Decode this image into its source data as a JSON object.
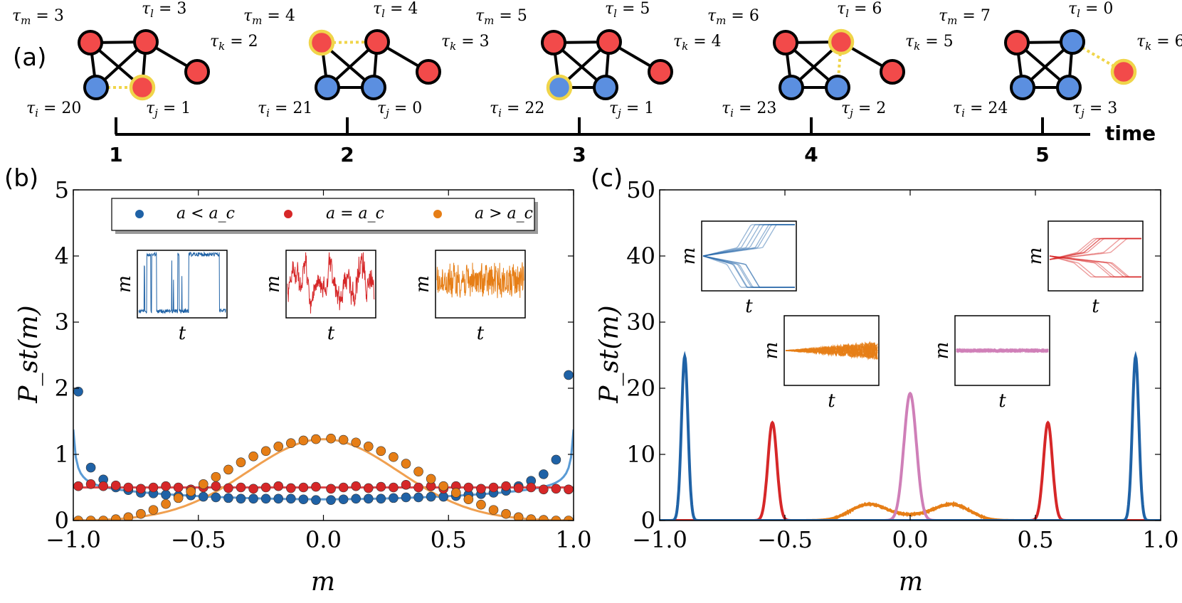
{
  "panel_labels": {
    "a": "(a)",
    "b": "(b)",
    "c": "(c)"
  },
  "colors": {
    "blue": "#1f62a6",
    "blue_node": "#5b8fe0",
    "red": "#d62728",
    "red_node": "#f24a4a",
    "orange": "#e67e16",
    "pink": "#cf7fb8",
    "highlight": "#f0d54a"
  },
  "panel_a": {
    "axis_label": "time",
    "ticks": [
      "1",
      "2",
      "3",
      "4",
      "5"
    ],
    "snapshots": [
      {
        "step": "1",
        "nodes": {
          "m": "red",
          "l": "red",
          "k": "red",
          "i": "blue",
          "j": "red"
        },
        "highlight": [
          "j"
        ],
        "link": [
          "i",
          "j"
        ],
        "labels": {
          "m": "τ_m = 3",
          "l": "τ_l = 3",
          "k": "τ_k = 2",
          "i": "τ_i = 20",
          "j": "τ_j = 1"
        }
      },
      {
        "step": "2",
        "nodes": {
          "m": "red",
          "l": "red",
          "k": "red",
          "i": "blue",
          "j": "blue"
        },
        "highlight": [
          "m"
        ],
        "link": [
          "m",
          "l"
        ],
        "labels": {
          "m": "τ_m = 4",
          "l": "τ_l = 4",
          "k": "τ_k = 3",
          "i": "τ_i = 21",
          "j": "τ_j = 0"
        }
      },
      {
        "step": "3",
        "nodes": {
          "m": "red",
          "l": "red",
          "k": "red",
          "i": "blue",
          "j": "blue"
        },
        "highlight": [
          "i"
        ],
        "link": [],
        "labels": {
          "m": "τ_m = 5",
          "l": "τ_l = 5",
          "k": "τ_k = 4",
          "i": "τ_i = 22",
          "j": "τ_j = 1"
        }
      },
      {
        "step": "4",
        "nodes": {
          "m": "red",
          "l": "red",
          "k": "red",
          "i": "blue",
          "j": "blue"
        },
        "highlight": [
          "l"
        ],
        "link": [
          "l",
          "j"
        ],
        "labels": {
          "m": "τ_m = 6",
          "l": "τ_l = 6",
          "k": "τ_k = 5",
          "i": "τ_i = 23",
          "j": "τ_j = 2"
        }
      },
      {
        "step": "5",
        "nodes": {
          "m": "red",
          "l": "blue",
          "k": "red",
          "i": "blue",
          "j": "blue"
        },
        "highlight": [
          "k"
        ],
        "link": [
          "l",
          "k"
        ],
        "labels": {
          "m": "τ_m = 7",
          "l": "τ_l = 0",
          "k": "τ_k = 6",
          "i": "τ_i = 24",
          "j": "τ_j = 3"
        }
      }
    ]
  },
  "chart_data": [
    {
      "panel": "b",
      "type": "scatter",
      "xlabel": "m",
      "ylabel": "P_st(m)",
      "xlim": [
        -1.0,
        1.0
      ],
      "ylim": [
        0,
        5
      ],
      "xticks": [
        "−1.0",
        "−0.5",
        "0.0",
        "0.5",
        "1.0"
      ],
      "yticks": [
        "0",
        "1",
        "2",
        "3",
        "4",
        "5"
      ],
      "legend": {
        "position": "top",
        "entries": [
          "a < a_c",
          "a = a_c",
          "a > a_c"
        ]
      },
      "x": [
        -0.98,
        -0.93,
        -0.88,
        -0.83,
        -0.78,
        -0.73,
        -0.68,
        -0.63,
        -0.58,
        -0.53,
        -0.48,
        -0.43,
        -0.38,
        -0.33,
        -0.28,
        -0.23,
        -0.18,
        -0.13,
        -0.08,
        -0.03,
        0.03,
        0.08,
        0.13,
        0.18,
        0.23,
        0.28,
        0.33,
        0.38,
        0.43,
        0.48,
        0.53,
        0.58,
        0.63,
        0.68,
        0.73,
        0.78,
        0.83,
        0.88,
        0.93,
        0.98
      ],
      "series": [
        {
          "name": "a < a_c",
          "color": "#1f62a6",
          "values": [
            1.95,
            0.8,
            0.62,
            0.5,
            0.46,
            0.42,
            0.41,
            0.39,
            0.37,
            0.38,
            0.36,
            0.35,
            0.34,
            0.33,
            0.33,
            0.33,
            0.33,
            0.33,
            0.32,
            0.31,
            0.31,
            0.32,
            0.33,
            0.33,
            0.33,
            0.34,
            0.35,
            0.35,
            0.36,
            0.36,
            0.37,
            0.39,
            0.4,
            0.42,
            0.45,
            0.52,
            0.6,
            0.7,
            0.92,
            2.2
          ]
        },
        {
          "name": "a = a_c",
          "color": "#d62728",
          "values": [
            0.52,
            0.55,
            0.52,
            0.53,
            0.5,
            0.48,
            0.5,
            0.52,
            0.5,
            0.47,
            0.5,
            0.52,
            0.49,
            0.5,
            0.48,
            0.5,
            0.52,
            0.49,
            0.5,
            0.51,
            0.48,
            0.5,
            0.52,
            0.49,
            0.51,
            0.5,
            0.54,
            0.5,
            0.52,
            0.48,
            0.52,
            0.5,
            0.48,
            0.5,
            0.52,
            0.49,
            0.5,
            0.47,
            0.48,
            0.47
          ]
        },
        {
          "name": "a > a_c",
          "color": "#e67e16",
          "values": [
            0.0,
            0.0,
            0.0,
            0.02,
            0.05,
            0.1,
            0.16,
            0.25,
            0.34,
            0.44,
            0.55,
            0.66,
            0.77,
            0.88,
            0.97,
            1.05,
            1.12,
            1.17,
            1.21,
            1.23,
            1.24,
            1.22,
            1.18,
            1.12,
            1.05,
            0.96,
            0.86,
            0.74,
            0.63,
            0.52,
            0.42,
            0.32,
            0.24,
            0.16,
            0.1,
            0.05,
            0.02,
            0.01,
            0.0,
            0.0
          ]
        }
      ],
      "insets": [
        {
          "name": "a < a_c",
          "xlabel": "t",
          "ylabel": "m",
          "color": "#1f62a6"
        },
        {
          "name": "a = a_c",
          "xlabel": "t",
          "ylabel": "m",
          "color": "#d62728"
        },
        {
          "name": "a > a_c",
          "xlabel": "t",
          "ylabel": "m",
          "color": "#e67e16"
        }
      ]
    },
    {
      "panel": "c",
      "type": "line",
      "xlabel": "m",
      "ylabel": "P_st(m)",
      "xlim": [
        -1.0,
        1.0
      ],
      "ylim": [
        0,
        50
      ],
      "xticks": [
        "−1.0",
        "−0.5",
        "0.0",
        "0.5",
        "1.0"
      ],
      "yticks": [
        "0",
        "10",
        "20",
        "30",
        "40",
        "50"
      ],
      "series": [
        {
          "name": "blue",
          "color": "#1f62a6",
          "peaks": [
            {
              "center": -0.9,
              "height": 24.8,
              "width": 0.013
            },
            {
              "center": 0.9,
              "height": 24.8,
              "width": 0.013
            }
          ]
        },
        {
          "name": "red",
          "color": "#d62728",
          "peaks": [
            {
              "center": -0.55,
              "height": 14.8,
              "width": 0.018
            },
            {
              "center": 0.55,
              "height": 14.8,
              "width": 0.018
            }
          ]
        },
        {
          "name": "pink",
          "color": "#cf7fb8",
          "peaks": [
            {
              "center": 0.0,
              "height": 19.2,
              "width": 0.025
            }
          ]
        },
        {
          "name": "orange",
          "color": "#e67e16",
          "peaks": [
            {
              "center": -0.17,
              "height": 2.3,
              "width": 0.07
            },
            {
              "center": 0.17,
              "height": 2.3,
              "width": 0.07
            },
            {
              "center": 0.0,
              "height": 0.7,
              "width": 0.1
            }
          ]
        }
      ],
      "insets": [
        {
          "name": "blue",
          "xlabel": "t",
          "ylabel": "m",
          "color": "#1f62a6"
        },
        {
          "name": "red",
          "xlabel": "t",
          "ylabel": "m",
          "color": "#d62728"
        },
        {
          "name": "orange",
          "xlabel": "t",
          "ylabel": "m",
          "color": "#e67e16"
        },
        {
          "name": "pink",
          "xlabel": "t",
          "ylabel": "m",
          "color": "#cf7fb8"
        }
      ]
    }
  ]
}
